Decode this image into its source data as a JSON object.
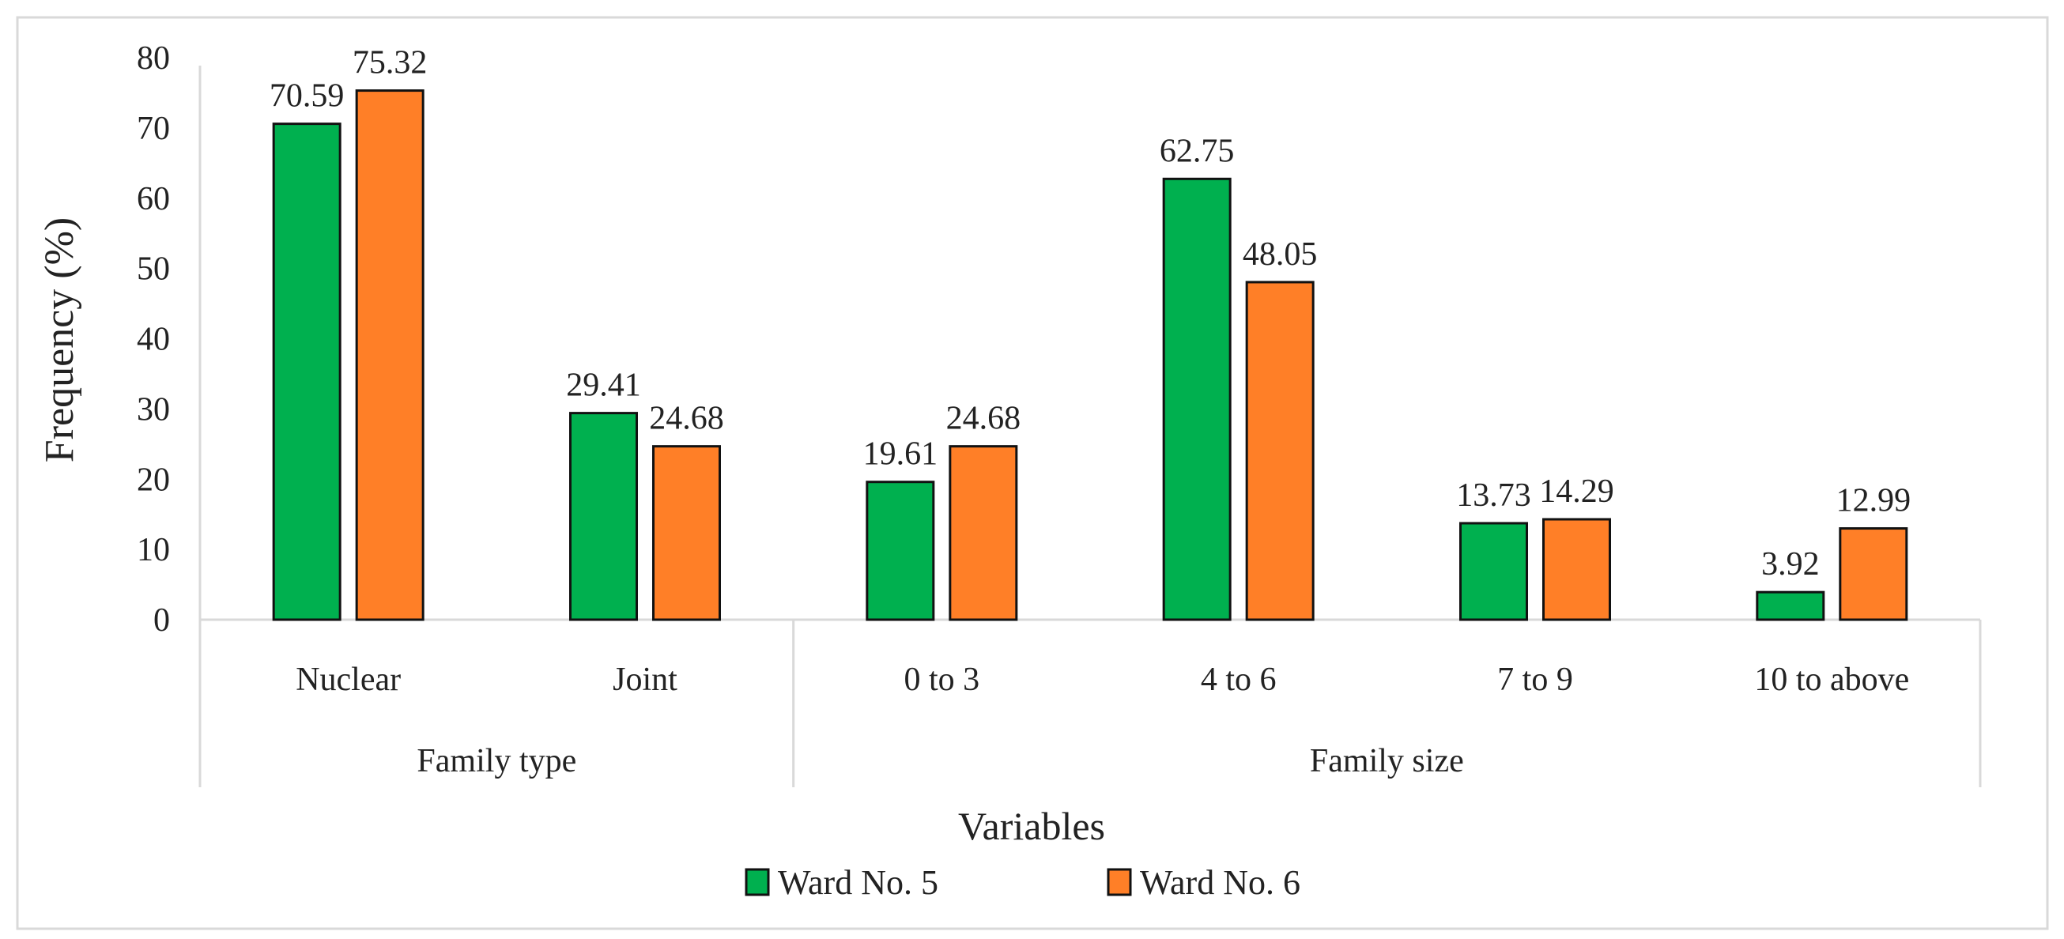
{
  "chart_data": {
    "type": "bar",
    "title": "",
    "xlabel": "Variables",
    "ylabel": "Frequency (%)",
    "ylim": [
      0,
      80
    ],
    "yticks": [
      0,
      10,
      20,
      30,
      40,
      50,
      60,
      70,
      80
    ],
    "grid": false,
    "legend_position": "bottom",
    "groups": [
      {
        "label": "Family type",
        "categories": [
          "Nuclear",
          "Joint"
        ]
      },
      {
        "label": "Family size",
        "categories": [
          "0 to 3",
          "4 to 6",
          "7 to 9",
          "10 to above"
        ]
      }
    ],
    "categories": [
      "Nuclear",
      "Joint",
      "0 to 3",
      "4 to 6",
      "7 to 9",
      "10 to above"
    ],
    "series": [
      {
        "name": "Ward No. 5",
        "color": "#00B04F",
        "values": [
          70.59,
          29.41,
          19.61,
          62.75,
          13.73,
          3.92
        ]
      },
      {
        "name": "Ward No. 6",
        "color": "#FF7F27",
        "values": [
          75.32,
          24.68,
          24.68,
          48.05,
          14.29,
          12.99
        ]
      }
    ]
  }
}
